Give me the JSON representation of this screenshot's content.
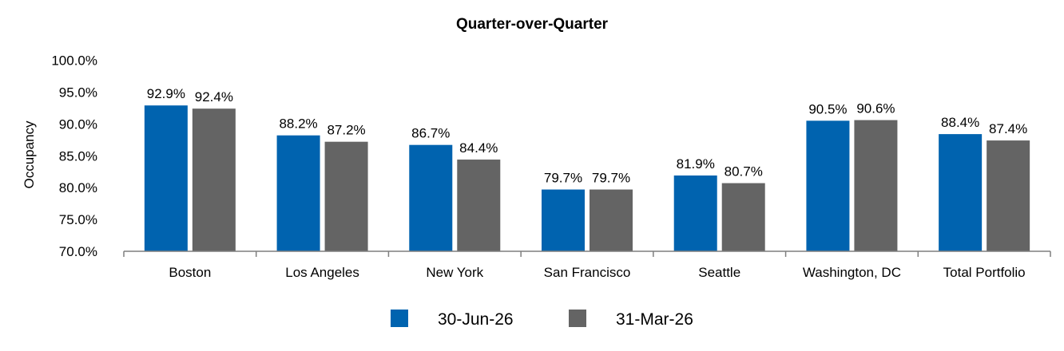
{
  "chart_data": {
    "type": "bar",
    "title": "Quarter-over-Quarter",
    "xlabel": "",
    "ylabel": "Occupancy",
    "ylim": [
      70,
      100
    ],
    "yticks": [
      "100.0%",
      "95.0%",
      "90.0%",
      "85.0%",
      "80.0%",
      "75.0%",
      "70.0%"
    ],
    "ytick_values": [
      100,
      95,
      90,
      85,
      80,
      75,
      70
    ],
    "categories": [
      "Boston",
      "Los Angeles",
      "New York",
      "San Francisco",
      "Seattle",
      "Washington, DC",
      "Total Portfolio"
    ],
    "series": [
      {
        "name": "30-Jun-26",
        "color": "#0063AF",
        "values": [
          92.9,
          88.2,
          86.7,
          79.7,
          81.9,
          90.5,
          88.4
        ],
        "labels": [
          "92.9%",
          "88.2%",
          "86.7%",
          "79.7%",
          "81.9%",
          "90.5%",
          "88.4%"
        ]
      },
      {
        "name": "31-Mar-26",
        "color": "#646464",
        "values": [
          92.4,
          87.2,
          84.4,
          79.7,
          80.7,
          90.6,
          87.4
        ],
        "labels": [
          "92.4%",
          "87.2%",
          "84.4%",
          "79.7%",
          "80.7%",
          "90.6%",
          "87.4%"
        ]
      }
    ],
    "grid": false,
    "legend_position": "bottom-center"
  }
}
